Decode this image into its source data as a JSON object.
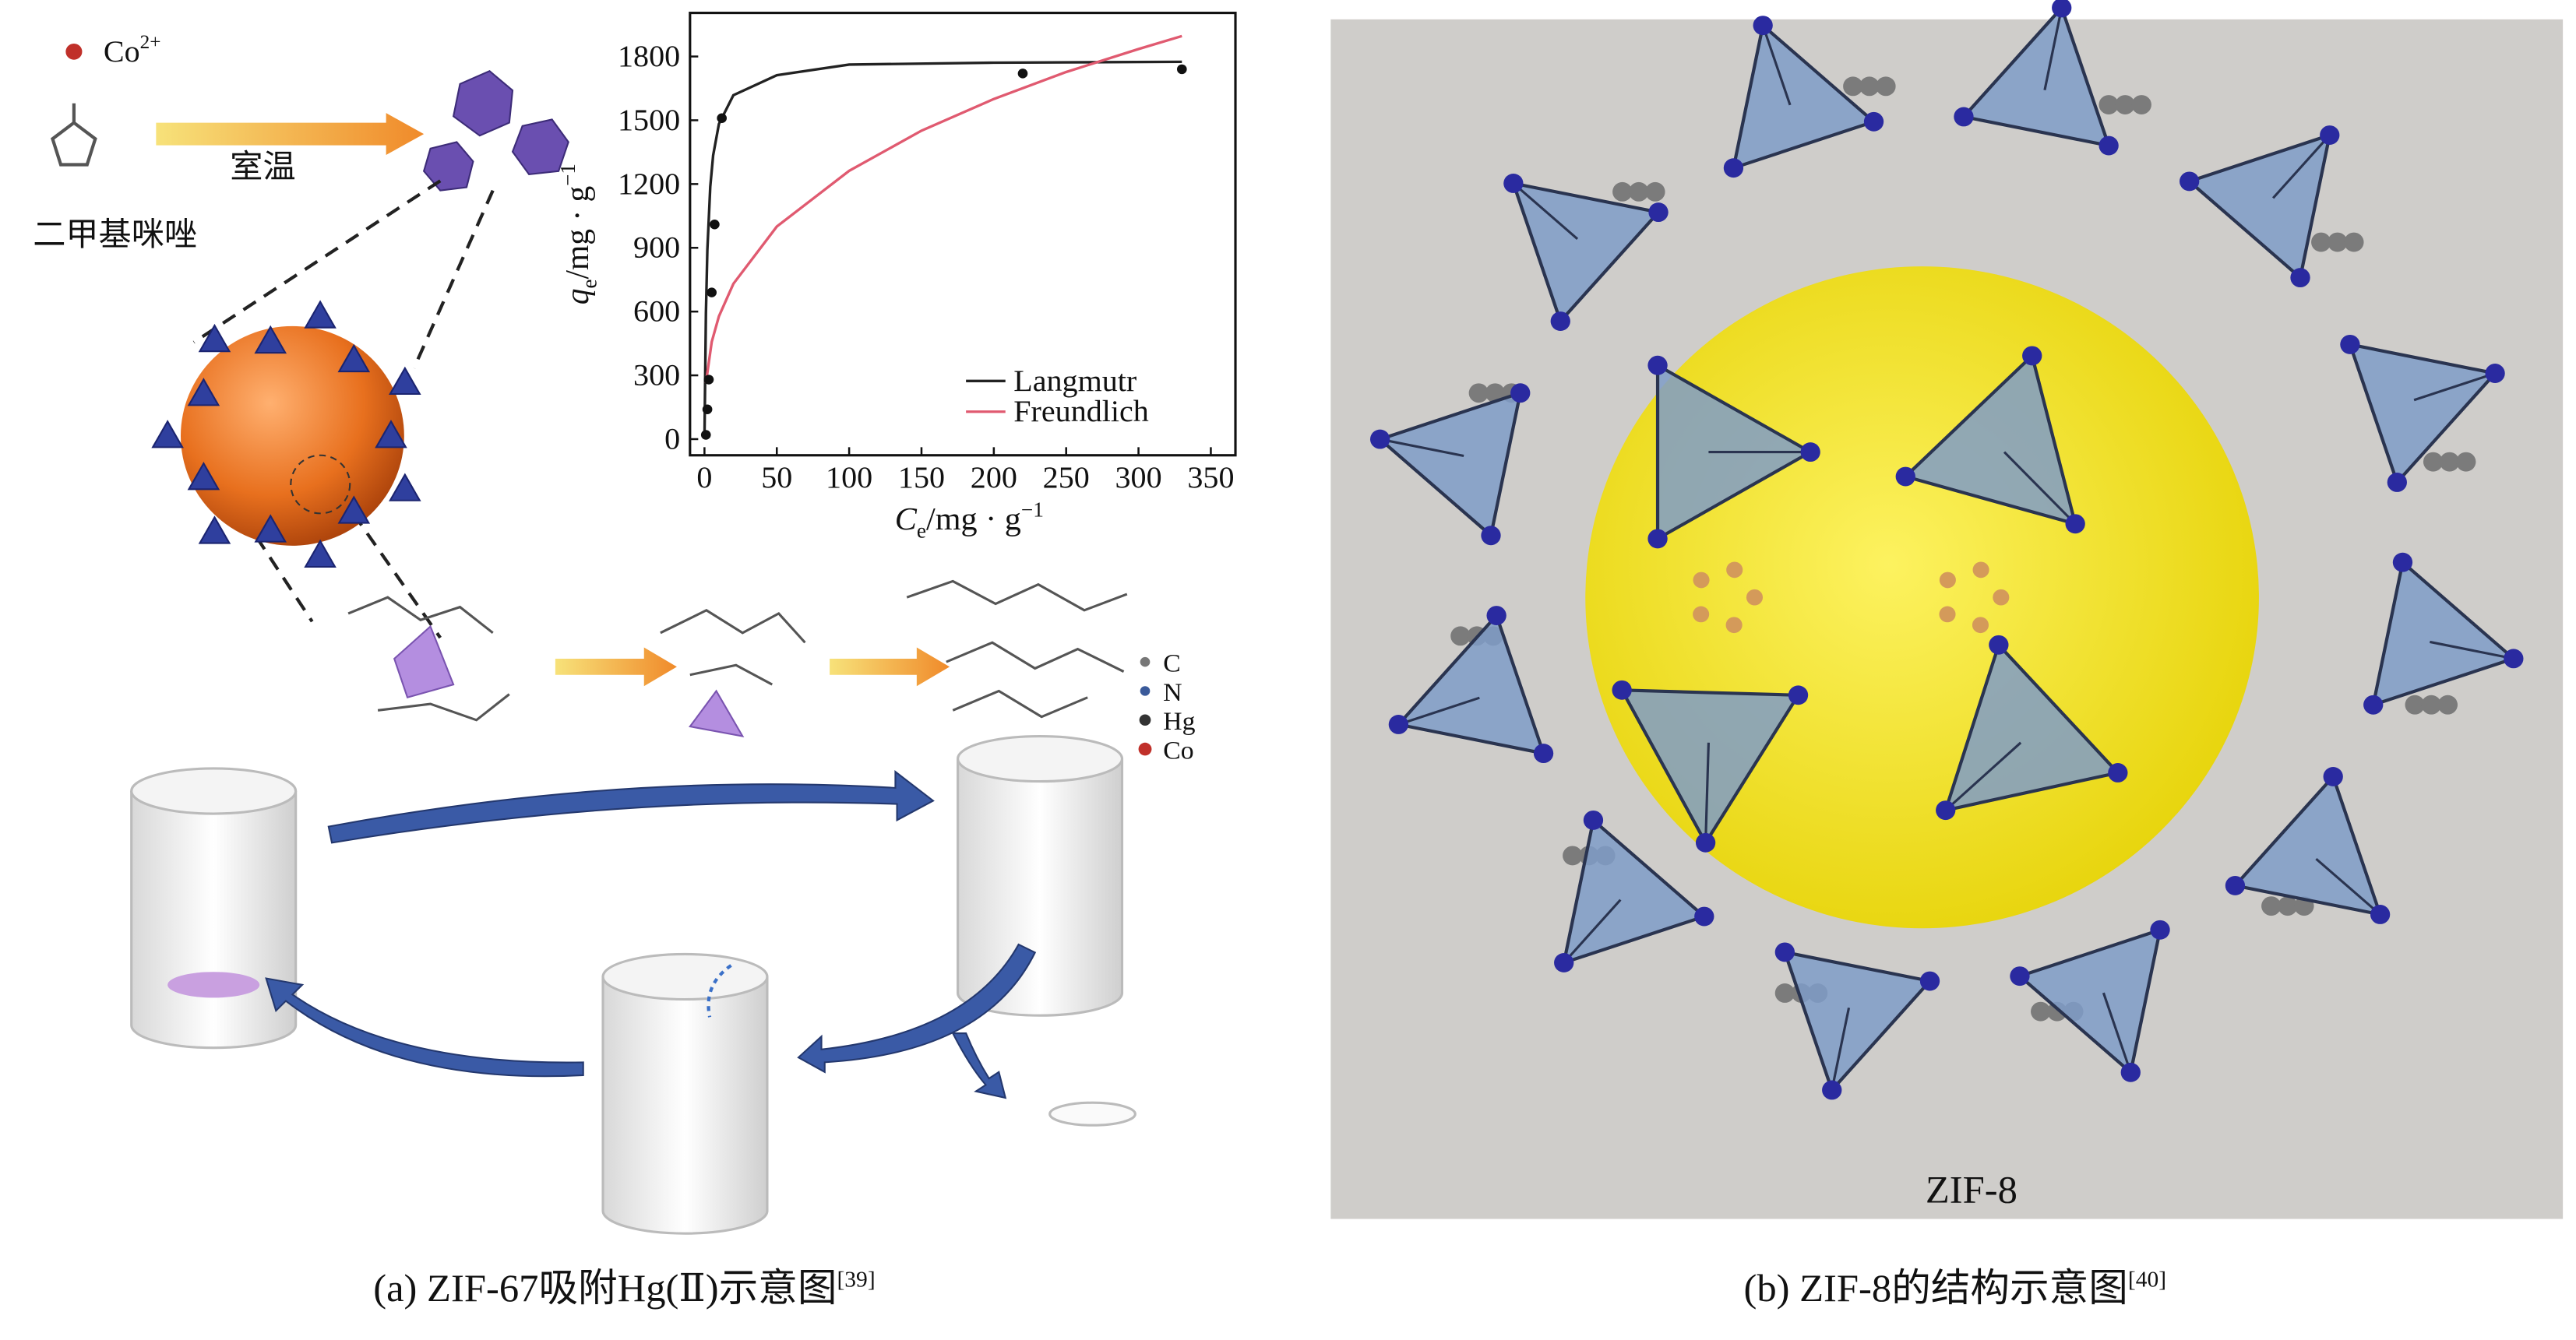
{
  "panel_a": {
    "cobalt_label": {
      "text": "Co",
      "sup": "2+"
    },
    "arrow_label": "室温",
    "ligand_label": "二甲基咪唑",
    "atom_legend": [
      "C",
      "N",
      "Hg",
      "Co"
    ],
    "caption": {
      "text": "(a) ZIF-67吸附Hg(Ⅱ)示意图",
      "ref": "[39]"
    }
  },
  "chart_data": {
    "type": "line",
    "xlabel": [
      "C",
      "e",
      "/mg · g",
      "−1"
    ],
    "ylabel": [
      "q",
      "e",
      "/mg · g",
      "−1"
    ],
    "xlim": [
      -10,
      367
    ],
    "ylim": [
      -76,
      2005
    ],
    "xticks": [
      0,
      50,
      100,
      150,
      200,
      250,
      300,
      350
    ],
    "yticks": [
      0,
      300,
      600,
      900,
      1200,
      1500,
      1800
    ],
    "grid": false,
    "legend": "lower right",
    "points": {
      "color": "#111111",
      "x": [
        1,
        2,
        3,
        5,
        7,
        12,
        220,
        330
      ],
      "values": [
        20,
        140,
        280,
        690,
        1010,
        1510,
        1720,
        1740
      ]
    },
    "series": [
      {
        "name": "Langmutr",
        "color": "#222222",
        "x": [
          0,
          1,
          2,
          4,
          6,
          10,
          20,
          50,
          100,
          200,
          330
        ],
        "values": [
          0,
          593,
          890,
          1187,
          1335,
          1483,
          1618,
          1712,
          1762,
          1771,
          1775
        ]
      },
      {
        "name": "Freundlich",
        "color": "#e05a70",
        "x": [
          1,
          5,
          10,
          20,
          50,
          100,
          150,
          200,
          250,
          300,
          330
        ],
        "values": [
          264,
          457,
          578,
          731,
          1000,
          1262,
          1451,
          1600,
          1727,
          1835,
          1896
        ]
      }
    ]
  },
  "panel_b": {
    "label": "ZIF-8",
    "caption": {
      "text": "(b) ZIF-8的结构示意图",
      "ref": "[40]"
    }
  }
}
